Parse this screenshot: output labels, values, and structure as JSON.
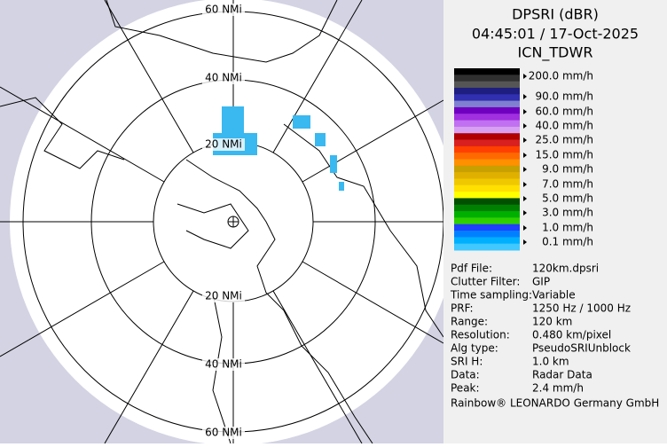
{
  "header": {
    "lines": [
      "DPSRI (dBR)",
      "04:45:01 / 17-Oct-2025",
      "ICN_TDWR"
    ]
  },
  "map": {
    "range_labels": [
      "60 NMi",
      "40 NMi",
      "20 NMi",
      "20 NMi",
      "40 NMi",
      "60 NMi"
    ]
  },
  "legend": {
    "labels": [
      "200.0 mm/h",
      "90.0 mm/h",
      "60.0 mm/h",
      "40.0 mm/h",
      "25.0 mm/h",
      "15.0 mm/h",
      "9.0 mm/h",
      "7.0 mm/h",
      "5.0 mm/h",
      "3.0 mm/h",
      "1.0 mm/h",
      "0.1 mm/h"
    ]
  },
  "info": {
    "rows": [
      [
        "Pdf File:",
        "120km.dpsri"
      ],
      [
        "Clutter Filter:",
        "GIP"
      ],
      [
        "Time sampling:",
        "Variable"
      ],
      [
        "PRF:",
        "1250 Hz / 1000 Hz"
      ],
      [
        "Range:",
        "120 km"
      ],
      [
        "Resolution:",
        "0.480 km/pixel"
      ],
      [
        "Alg type:",
        "PseudoSRIUnblock"
      ],
      [
        "SRI H:",
        "1.0 km"
      ],
      [
        "Data:",
        "Radar Data"
      ],
      [
        "Peak:",
        "2.4 mm/h"
      ]
    ]
  },
  "footer": "Rainbow® LEONARDO Germany GmbH"
}
